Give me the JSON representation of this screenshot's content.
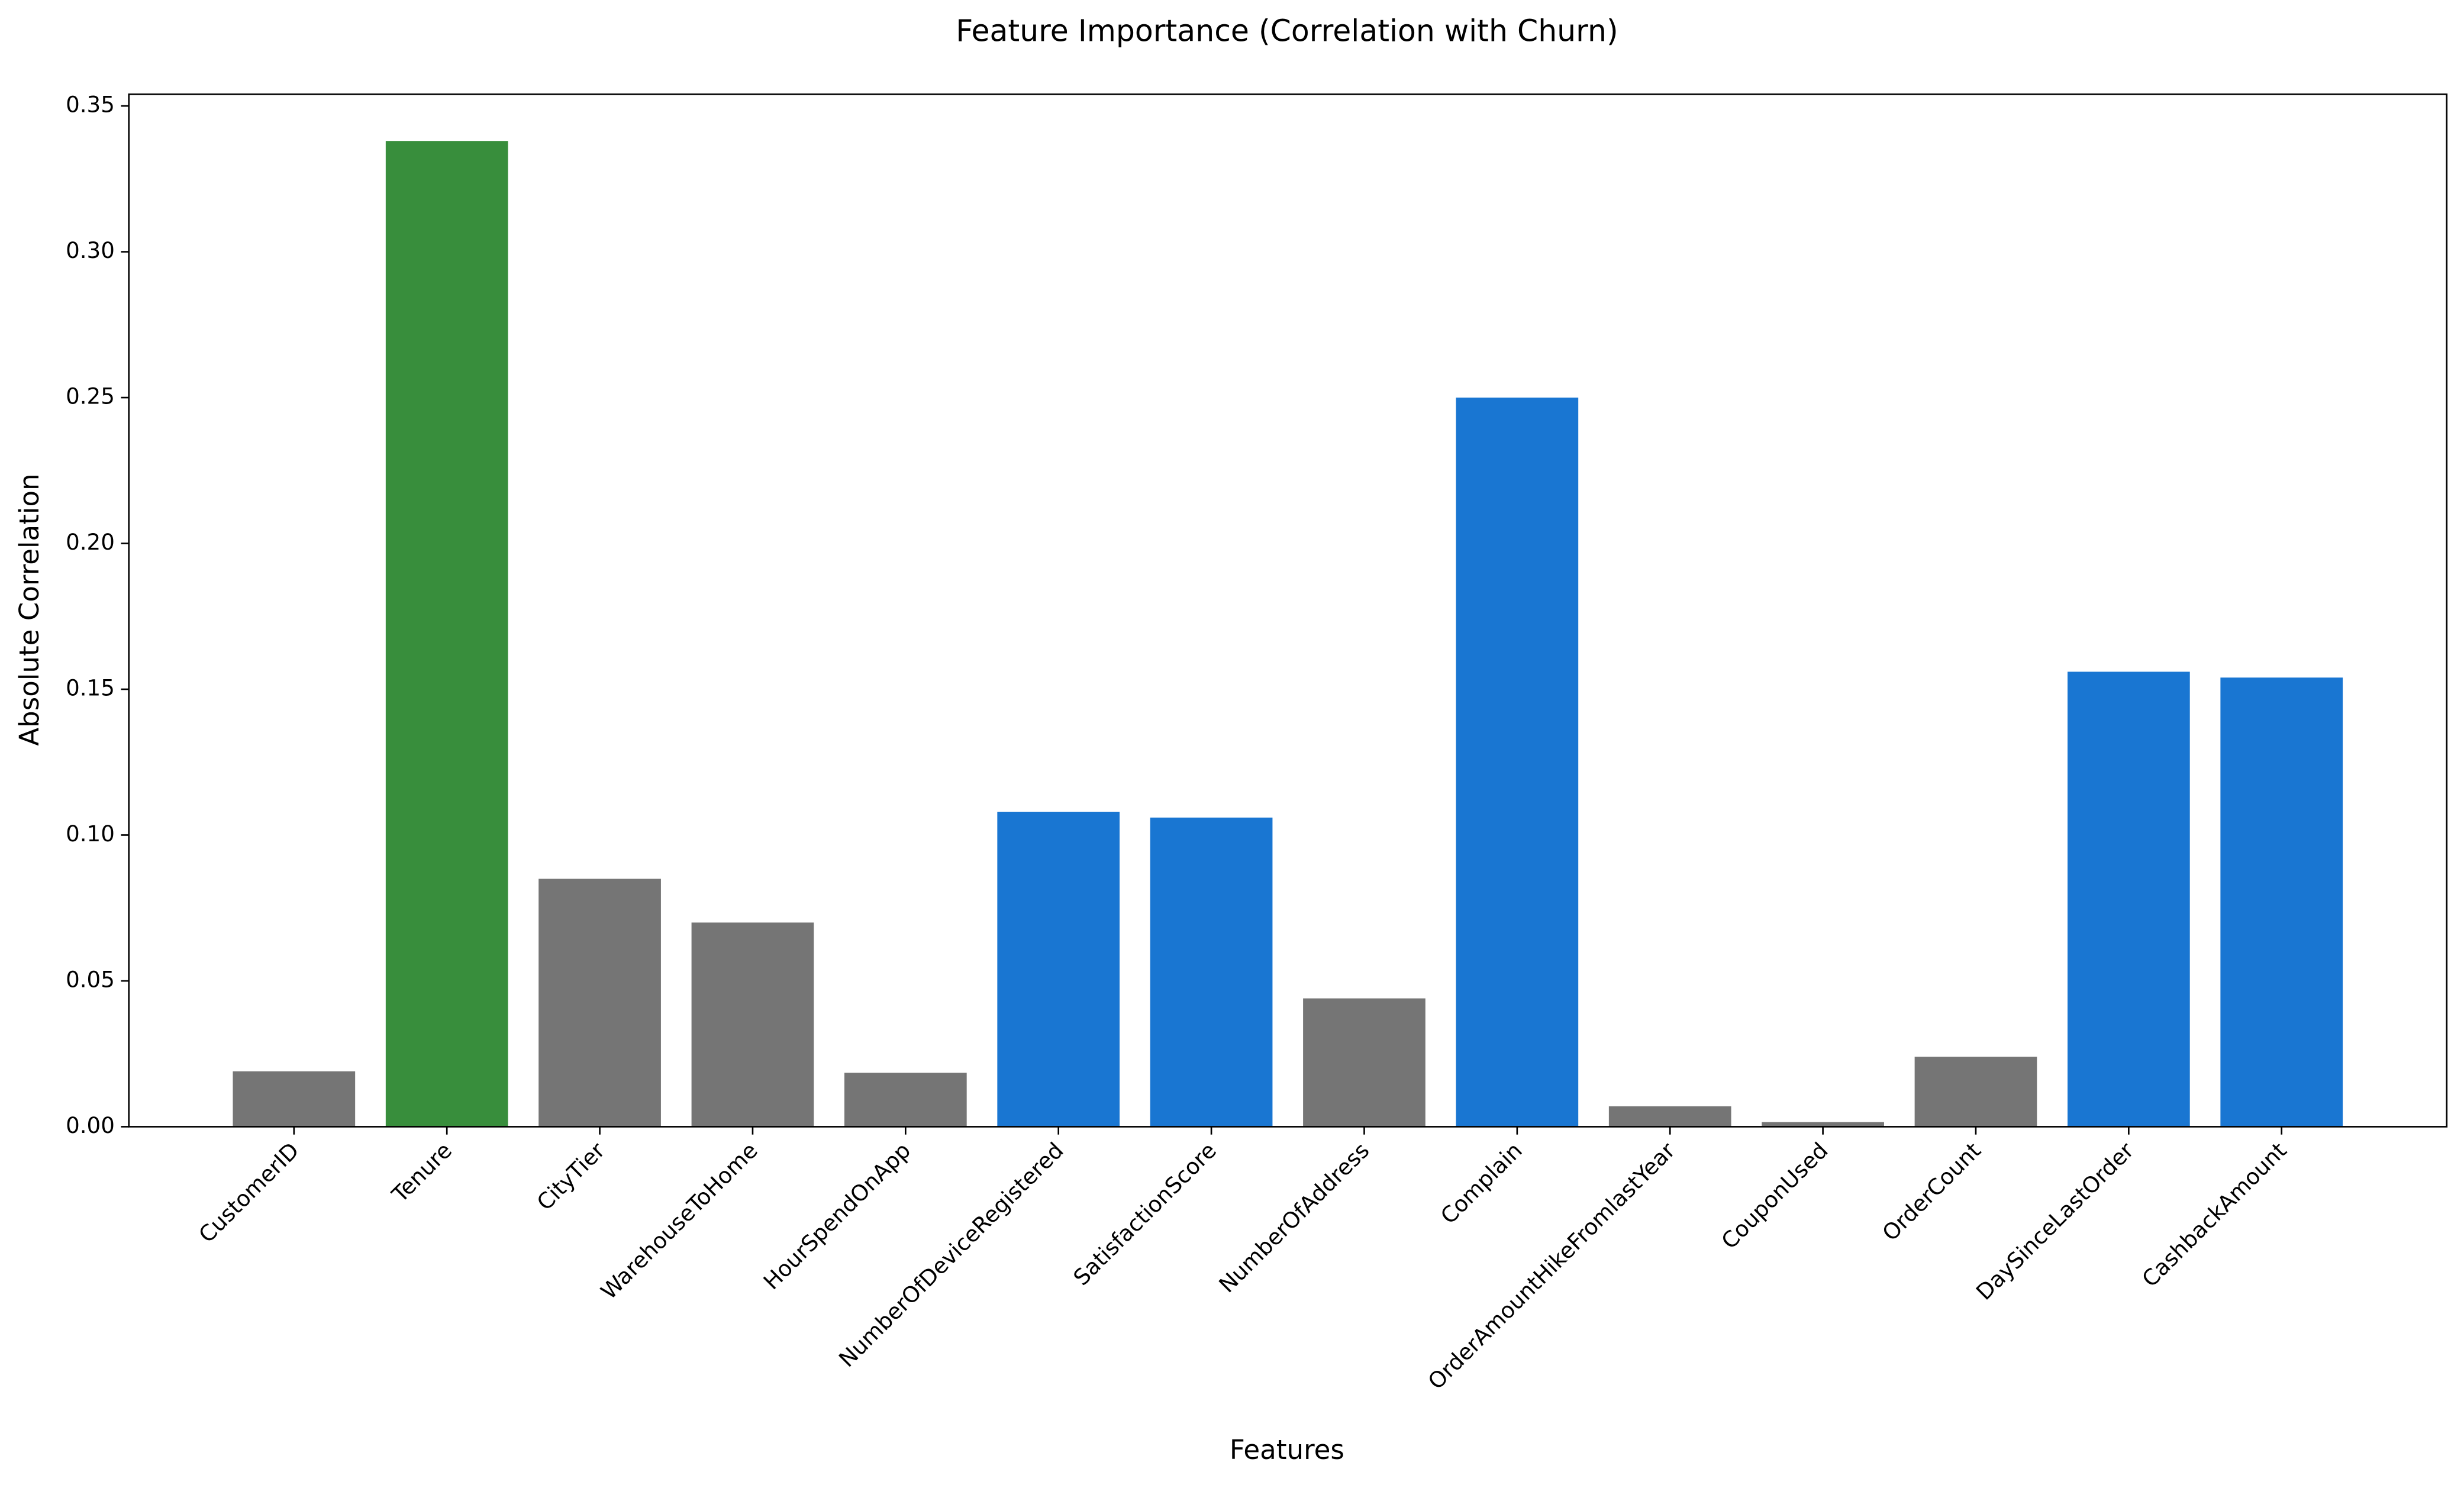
{
  "chart_data": {
    "type": "bar",
    "title": "Feature Importance (Correlation with Churn)",
    "x_label": "Features",
    "y_label": "Absolute Correlation",
    "categories": [
      "CustomerID",
      "Tenure",
      "CityTier",
      "WarehouseToHome",
      "HourSpendOnApp",
      "NumberOfDeviceRegistered",
      "SatisfactionScore",
      "NumberOfAddress",
      "Complain",
      "OrderAmountHikeFromlastYear",
      "CouponUsed",
      "OrderCount",
      "DaySinceLastOrder",
      "CashbackAmount"
    ],
    "values": [
      0.019,
      0.338,
      0.085,
      0.07,
      0.0185,
      0.108,
      0.106,
      0.044,
      0.25,
      0.007,
      0.0016,
      0.024,
      0.156,
      0.154
    ],
    "colors": [
      "#757575",
      "#388e3c",
      "#757575",
      "#757575",
      "#757575",
      "#1976d2",
      "#1976d2",
      "#757575",
      "#1976d2",
      "#757575",
      "#757575",
      "#757575",
      "#1976d2",
      "#1976d2"
    ],
    "ylim": [
      0,
      0.354
    ],
    "yticks": [
      {
        "value": 0,
        "label": "0.00"
      },
      {
        "value": 0.05,
        "label": "0.05"
      },
      {
        "value": 0.1,
        "label": "0.10"
      },
      {
        "value": 0.15,
        "label": "0.15"
      },
      {
        "value": 0.2,
        "label": "0.20"
      },
      {
        "value": 0.25,
        "label": "0.25"
      },
      {
        "value": 0.3,
        "label": "0.30"
      },
      {
        "value": 0.35,
        "label": "0.35"
      }
    ],
    "grid": false
  }
}
